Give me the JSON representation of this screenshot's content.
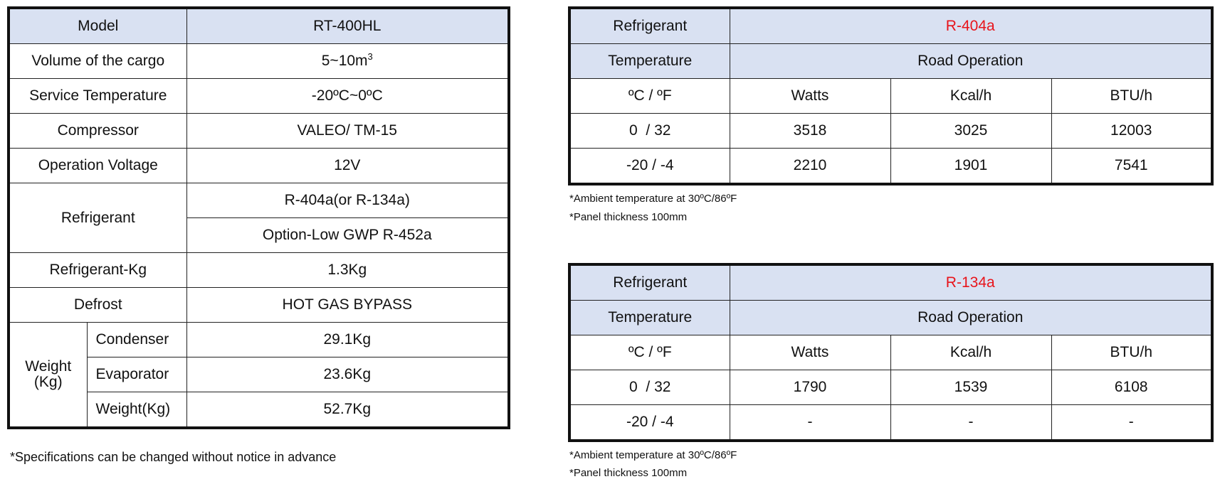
{
  "spec_table": {
    "model_label": "Model",
    "model_value": "RT-400HL",
    "volume_label": "Volume of the cargo",
    "volume_value": "5~10m",
    "volume_unit_sup": "3",
    "service_temp_label": "Service Temperature",
    "service_temp_value": "-20ºC~0ºC",
    "compressor_label": "Compressor",
    "compressor_value": "VALEO/ TM-15",
    "voltage_label": "Operation Voltage",
    "voltage_value": "12V",
    "refrigerant_label": "Refrigerant",
    "refrigerant_value_1": "R-404a(or R-134a)",
    "refrigerant_value_2": "Option-Low GWP R-452a",
    "refrigerant_kg_label": "Refrigerant-Kg",
    "refrigerant_kg_value": "1.3Kg",
    "defrost_label": "Defrost",
    "defrost_value": "HOT GAS BYPASS",
    "weight_label_line1": "Weight",
    "weight_label_line2": "(Kg)",
    "weights": [
      {
        "label": "Condenser",
        "value": "29.1Kg"
      },
      {
        "label": "Evaporator",
        "value": "23.6Kg"
      },
      {
        "label": "Weight(Kg)",
        "value": "52.7Kg"
      }
    ],
    "note": "*Specifications can be changed without notice in advance"
  },
  "perf_tables": [
    {
      "refrigerant_label": "Refrigerant",
      "refrigerant_value": "R-404a",
      "temperature_label": "Temperature",
      "operation_label": "Road Operation",
      "unit_headers": [
        "ºC / ºF",
        "Watts",
        "Kcal/h",
        "BTU/h"
      ],
      "rows": [
        [
          "0  / 32",
          "3518",
          "3025",
          "12003"
        ],
        [
          "-20 / -4",
          "2210",
          "1901",
          "7541"
        ]
      ],
      "note_1": "*Ambient temperature at 30ºC/86ºF",
      "note_2": "*Panel thickness 100mm"
    },
    {
      "refrigerant_label": "Refrigerant",
      "refrigerant_value": "R-134a",
      "temperature_label": "Temperature",
      "operation_label": "Road Operation",
      "unit_headers": [
        "ºC / ºF",
        "Watts",
        "Kcal/h",
        "BTU/h"
      ],
      "rows": [
        [
          "0  / 32",
          "1790",
          "1539",
          "6108"
        ],
        [
          "-20 / -4",
          "-",
          "-",
          "-"
        ]
      ],
      "note_1": "*Ambient temperature at 30ºC/86ºF",
      "note_2": "*Panel thickness 100mm"
    }
  ],
  "colors": {
    "header_bg": "#d9e1f2",
    "accent_red": "#e8141b",
    "border": "#111111"
  }
}
